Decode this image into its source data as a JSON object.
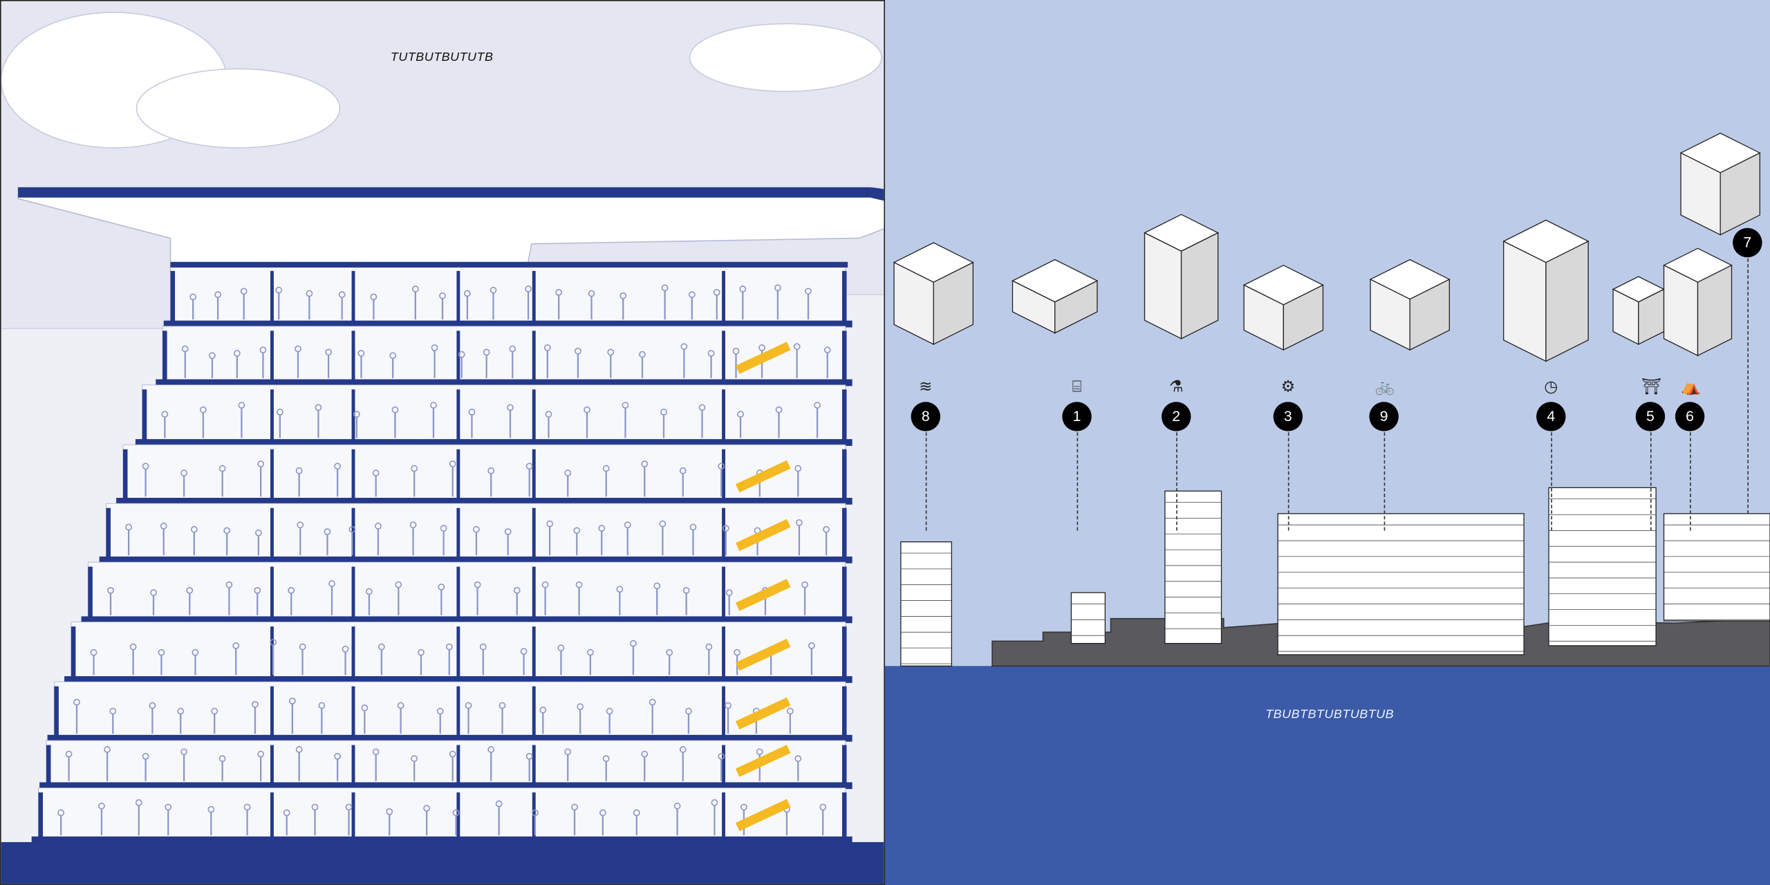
{
  "section_panel": {
    "title": "TUTBUTBUTUTB",
    "colors": {
      "background": "#e4e7f1",
      "structure": "#25398a",
      "highlight": "#f5b921"
    }
  },
  "skyline_panel": {
    "title": "TBUBTBTUBTUBTUB",
    "colors": {
      "sky": "#bccbe8",
      "ground": "#3b5aa8",
      "marker": "#000000"
    },
    "markers": [
      {
        "number": "8",
        "icon": "wave-icon"
      },
      {
        "number": "1",
        "icon": "projector-screen-icon"
      },
      {
        "number": "2",
        "icon": "lab-flask-icon"
      },
      {
        "number": "3",
        "icon": "workshop-machine-icon"
      },
      {
        "number": "9",
        "icon": "cyclist-icon"
      },
      {
        "number": "4",
        "icon": "clock-worker-icon"
      },
      {
        "number": "5",
        "icon": "shrine-frame-icon"
      },
      {
        "number": "6",
        "icon": "tent-icon"
      },
      {
        "number": "7",
        "icon": "none"
      }
    ]
  }
}
